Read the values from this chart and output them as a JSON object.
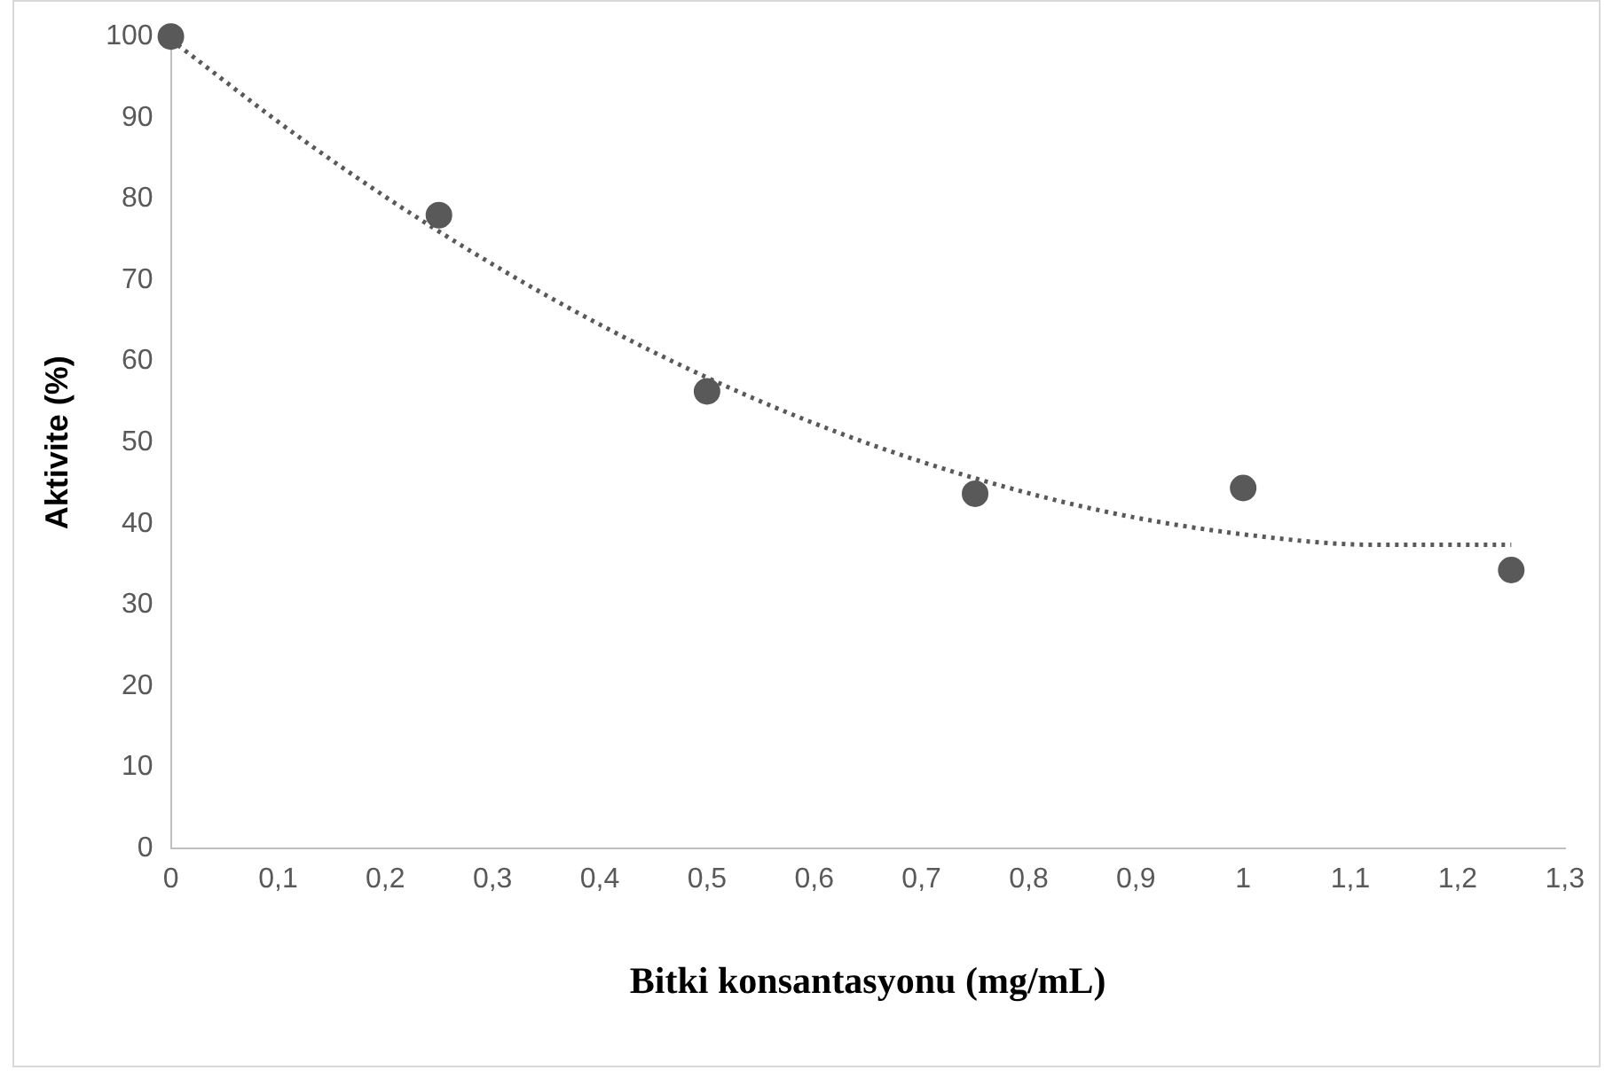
{
  "chart_data": {
    "type": "scatter",
    "xlabel": "Bitki konsantasyonu (mg/mL)",
    "ylabel": "Aktivite (%)",
    "marker": "circle",
    "grid": false,
    "legend": false,
    "xlim": [
      0,
      1.3
    ],
    "ylim": [
      0,
      100
    ],
    "xticks": [
      0,
      {
        "value": 0.1,
        "label": "0,1"
      },
      {
        "value": 0.2,
        "label": "0,2"
      },
      {
        "value": 0.3,
        "label": "0,3"
      },
      {
        "value": 0.4,
        "label": "0,4"
      },
      {
        "value": 0.5,
        "label": "0,5"
      },
      {
        "value": 0.6,
        "label": "0,6"
      },
      {
        "value": 0.7,
        "label": "0,7"
      },
      {
        "value": 0.8,
        "label": "0,8"
      },
      {
        "value": 0.9,
        "label": "0,9"
      },
      1,
      {
        "value": 1.1,
        "label": "1,1"
      },
      {
        "value": 1.2,
        "label": "1,2"
      },
      {
        "value": 1.3,
        "label": "1,3"
      }
    ],
    "yticks": [
      0,
      10,
      20,
      30,
      40,
      50,
      60,
      70,
      80,
      90,
      100
    ],
    "series": [
      {
        "type": "scatter",
        "color": "#595959",
        "x": [
          0,
          0.25,
          0.5,
          0.75,
          1,
          1.25
        ],
        "values": [
          100,
          78,
          56.3,
          43.7,
          44.4,
          34.3
        ]
      },
      {
        "type": "line",
        "line_style": "dotted",
        "marker": "none",
        "color": "#595959",
        "x": [
          0,
          0.125,
          0.25,
          0.375,
          0.5,
          0.625,
          0.75,
          0.875,
          1,
          1.125,
          1.25
        ],
        "values": [
          99.6,
          87.1,
          76,
          66.3,
          58,
          51.1,
          45.6,
          41.4,
          38.7,
          37.4,
          37.4
        ]
      }
    ]
  }
}
